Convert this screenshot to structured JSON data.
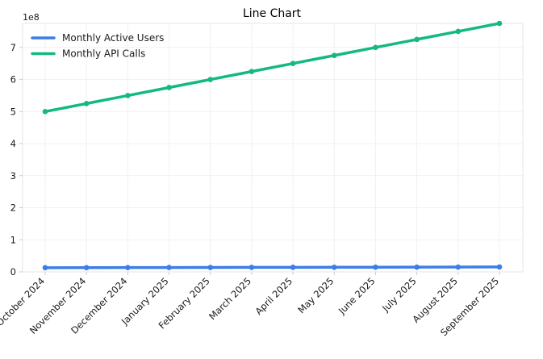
{
  "chart_data": {
    "type": "line",
    "title": "Line Chart",
    "xlabel": "",
    "ylabel": "",
    "y_offset_label": "1e8",
    "y_scale": 100000000,
    "ylim": [
      0,
      7.75
    ],
    "y_ticks": [
      0,
      1,
      2,
      3,
      4,
      5,
      6,
      7
    ],
    "grid": true,
    "legend": "top-left",
    "categories": [
      "October 2024",
      "November 2024",
      "December 2024",
      "January 2025",
      "February 2025",
      "March 2025",
      "April 2025",
      "May 2025",
      "June 2025",
      "July 2025",
      "August 2025",
      "September 2025"
    ],
    "series": [
      {
        "name": "Monthly Active Users",
        "color": "#3b7de9",
        "values": [
          0.13,
          0.132,
          0.134,
          0.136,
          0.138,
          0.14,
          0.142,
          0.144,
          0.146,
          0.148,
          0.15,
          0.153
        ]
      },
      {
        "name": "Monthly API Calls",
        "color": "#13b985",
        "values": [
          5.0,
          5.25,
          5.5,
          5.75,
          6.0,
          6.25,
          6.5,
          6.75,
          7.0,
          7.25,
          7.5,
          7.75
        ]
      }
    ]
  }
}
